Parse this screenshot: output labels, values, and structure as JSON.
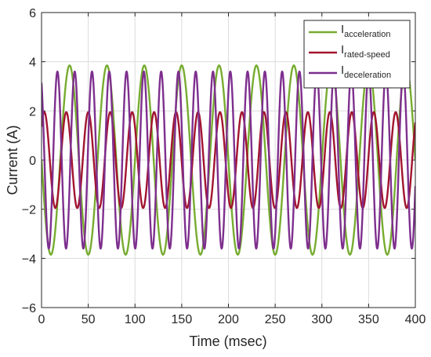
{
  "chart_data": {
    "type": "line",
    "xlabel": "Time (msec)",
    "ylabel": "Current (A)",
    "xlim": [
      0,
      400
    ],
    "ylim": [
      -6,
      6
    ],
    "x_ticks": [
      0,
      50,
      100,
      150,
      200,
      250,
      300,
      350,
      400
    ],
    "y_ticks": [
      -6,
      -4,
      -2,
      0,
      2,
      4,
      6
    ],
    "grid": true,
    "legend_position": "top-right",
    "series": [
      {
        "name": "I",
        "name_subscript": "acceleration",
        "color": "#77ac30",
        "shape": "sinusoid",
        "amplitude": 3.85,
        "period_ms": 40,
        "first_peak_ms": 30,
        "x_range": [
          0,
          400
        ]
      },
      {
        "name": "I",
        "name_subscript": "rated-speed",
        "color": "#a2142f",
        "shape": "sinusoid",
        "amplitude": 1.95,
        "period_ms": 23.5,
        "first_peak_ms": 3,
        "x_range": [
          0,
          400
        ]
      },
      {
        "name": "I",
        "name_subscript": "deceleration",
        "color": "#7e2f8e",
        "shape": "sinusoid",
        "amplitude": 3.6,
        "period_ms": 18.5,
        "first_peak_ms": 17,
        "x_range": [
          0,
          400
        ]
      }
    ]
  }
}
